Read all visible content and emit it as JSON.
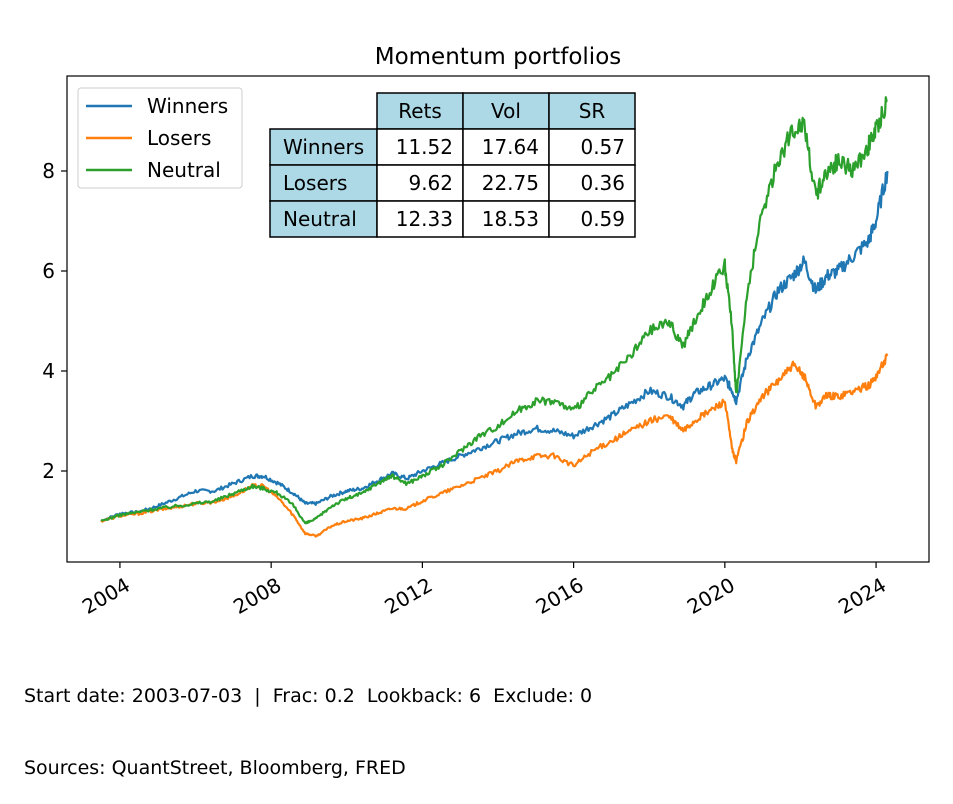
{
  "footer": {
    "line1": "Start date: 2003-07-03  |  Frac: 0.2  Lookback: 6  Exclude: 0",
    "line2": "Sources: QuantStreet, Bloomberg, FRED"
  },
  "stats_table": {
    "header_color": "#add8e6",
    "columns": [
      "Rets",
      "Vol",
      "SR"
    ],
    "rows": [
      {
        "label": "Winners",
        "values": [
          "11.52",
          "17.64",
          "0.57"
        ]
      },
      {
        "label": "Losers",
        "values": [
          "9.62",
          "22.75",
          "0.36"
        ]
      },
      {
        "label": "Neutral",
        "values": [
          "12.33",
          "18.53",
          "0.59"
        ]
      }
    ]
  },
  "chart_data": {
    "type": "line",
    "title": "Momentum portfolios",
    "xlabel": "",
    "ylabel": "",
    "xlim": [
      2002.6,
      2025.4
    ],
    "ylim": [
      0.18,
      9.9
    ],
    "xticks": [
      2004,
      2008,
      2012,
      2016,
      2020,
      2024
    ],
    "yticks": [
      2,
      4,
      6,
      8
    ],
    "grid": false,
    "legend_position": "top-left",
    "series": [
      {
        "name": "Winners",
        "color": "#1f77b4",
        "x": [
          2003.5,
          2004.0,
          2004.5,
          2005.0,
          2005.5,
          2006.0,
          2006.5,
          2007.0,
          2007.5,
          2007.8,
          2008.2,
          2008.6,
          2008.9,
          2009.2,
          2009.6,
          2010.0,
          2010.4,
          2010.8,
          2011.2,
          2011.6,
          2012.0,
          2012.5,
          2013.0,
          2013.5,
          2014.0,
          2014.5,
          2015.0,
          2015.5,
          2016.0,
          2016.5,
          2017.0,
          2017.5,
          2018.0,
          2018.5,
          2018.9,
          2019.2,
          2019.6,
          2020.0,
          2020.2,
          2020.3,
          2020.6,
          2021.0,
          2021.4,
          2021.8,
          2022.1,
          2022.4,
          2022.7,
          2023.0,
          2023.4,
          2023.8,
          2024.0,
          2024.3
        ],
        "y": [
          1.0,
          1.15,
          1.18,
          1.3,
          1.45,
          1.6,
          1.6,
          1.75,
          1.9,
          1.9,
          1.75,
          1.55,
          1.35,
          1.35,
          1.5,
          1.6,
          1.65,
          1.8,
          1.95,
          1.85,
          2.0,
          2.15,
          2.3,
          2.45,
          2.6,
          2.75,
          2.85,
          2.8,
          2.7,
          2.9,
          3.1,
          3.35,
          3.6,
          3.5,
          3.3,
          3.55,
          3.7,
          3.85,
          3.6,
          3.4,
          4.3,
          5.0,
          5.6,
          5.9,
          6.2,
          5.6,
          5.9,
          6.0,
          6.3,
          6.6,
          7.0,
          8.0
        ]
      },
      {
        "name": "Losers",
        "color": "#ff7f0e",
        "x": [
          2003.5,
          2004.0,
          2004.5,
          2005.0,
          2005.5,
          2006.0,
          2006.5,
          2007.0,
          2007.5,
          2007.8,
          2008.2,
          2008.6,
          2008.9,
          2009.2,
          2009.6,
          2010.0,
          2010.4,
          2010.8,
          2011.2,
          2011.6,
          2012.0,
          2012.5,
          2013.0,
          2013.5,
          2014.0,
          2014.5,
          2015.0,
          2015.5,
          2016.0,
          2016.5,
          2017.0,
          2017.5,
          2018.0,
          2018.5,
          2018.9,
          2019.2,
          2019.6,
          2020.0,
          2020.2,
          2020.3,
          2020.6,
          2021.0,
          2021.4,
          2021.8,
          2022.1,
          2022.4,
          2022.7,
          2023.0,
          2023.4,
          2023.8,
          2024.0,
          2024.3
        ],
        "y": [
          1.0,
          1.1,
          1.15,
          1.22,
          1.28,
          1.35,
          1.38,
          1.5,
          1.7,
          1.7,
          1.45,
          1.1,
          0.75,
          0.7,
          0.9,
          1.0,
          1.05,
          1.15,
          1.25,
          1.25,
          1.4,
          1.55,
          1.7,
          1.85,
          2.0,
          2.2,
          2.3,
          2.3,
          2.1,
          2.4,
          2.6,
          2.8,
          3.0,
          3.1,
          2.8,
          3.0,
          3.2,
          3.4,
          2.4,
          2.2,
          3.0,
          3.5,
          3.8,
          4.1,
          3.9,
          3.3,
          3.5,
          3.5,
          3.6,
          3.7,
          3.9,
          4.3
        ]
      },
      {
        "name": "Neutral",
        "color": "#2ca02c",
        "x": [
          2003.5,
          2004.0,
          2004.5,
          2005.0,
          2005.5,
          2006.0,
          2006.5,
          2007.0,
          2007.5,
          2007.8,
          2008.2,
          2008.6,
          2008.9,
          2009.2,
          2009.6,
          2010.0,
          2010.4,
          2010.8,
          2011.2,
          2011.6,
          2012.0,
          2012.5,
          2013.0,
          2013.5,
          2014.0,
          2014.5,
          2015.0,
          2015.5,
          2016.0,
          2016.5,
          2017.0,
          2017.5,
          2018.0,
          2018.5,
          2018.9,
          2019.2,
          2019.6,
          2020.0,
          2020.2,
          2020.3,
          2020.6,
          2021.0,
          2021.4,
          2021.8,
          2022.1,
          2022.4,
          2022.7,
          2023.0,
          2023.4,
          2023.8,
          2024.0,
          2024.3
        ],
        "y": [
          1.0,
          1.12,
          1.18,
          1.25,
          1.3,
          1.35,
          1.4,
          1.55,
          1.7,
          1.65,
          1.55,
          1.3,
          0.95,
          1.05,
          1.3,
          1.45,
          1.55,
          1.75,
          1.9,
          1.75,
          1.9,
          2.1,
          2.4,
          2.7,
          2.9,
          3.2,
          3.4,
          3.4,
          3.2,
          3.6,
          3.9,
          4.3,
          4.8,
          5.0,
          4.5,
          5.0,
          5.6,
          6.1,
          4.8,
          3.5,
          5.6,
          7.2,
          8.2,
          8.8,
          9.0,
          7.5,
          8.0,
          8.2,
          8.0,
          8.5,
          8.8,
          9.4
        ]
      }
    ]
  }
}
